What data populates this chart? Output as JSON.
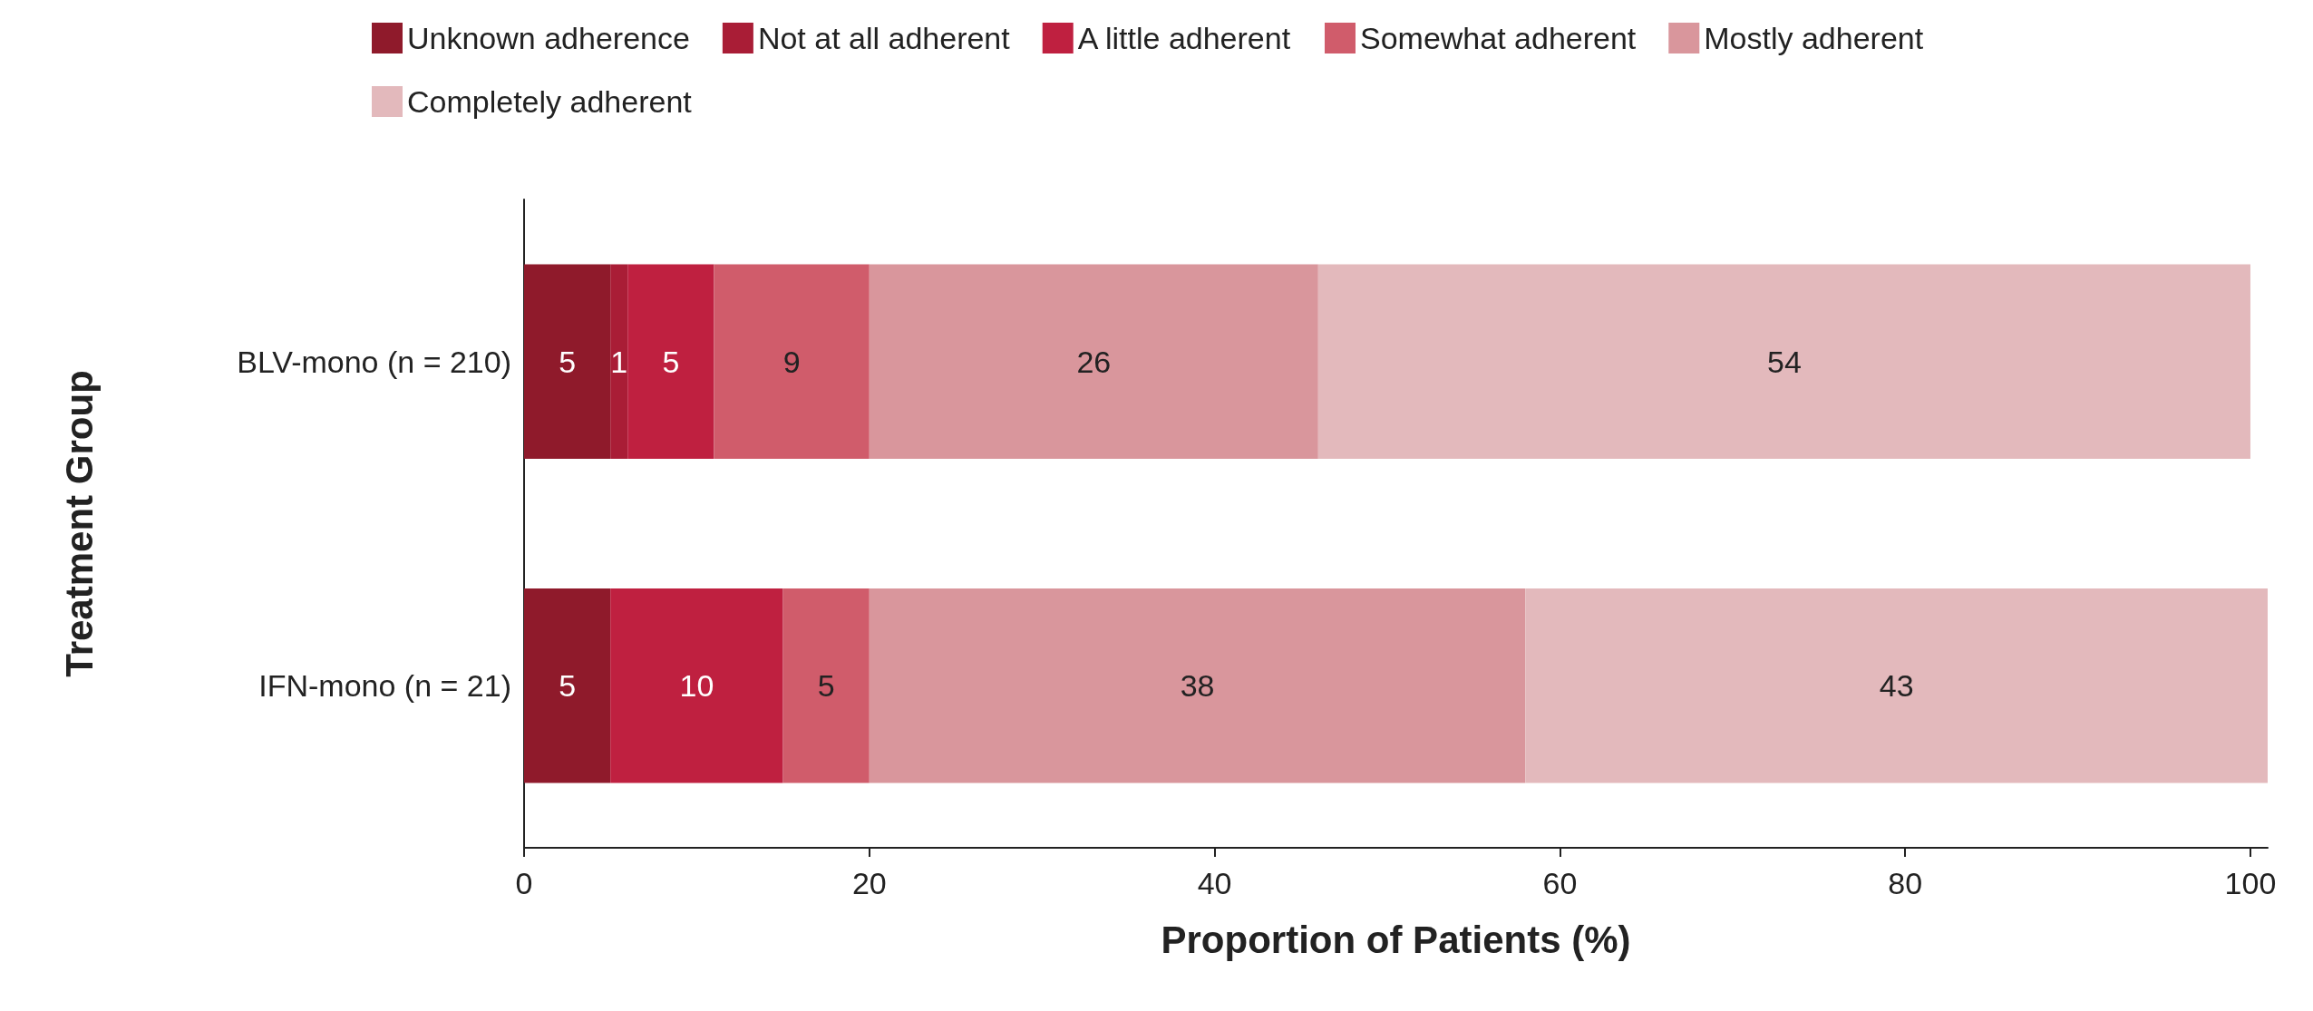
{
  "chart_data": {
    "type": "bar",
    "orientation": "horizontal",
    "stacked": true,
    "xlabel": "Proportion of Patients (%)",
    "ylabel": "Treatment Group",
    "categories": [
      "BLV-mono (n = 210)",
      "IFN-mono (n = 21)"
    ],
    "series": [
      {
        "name": "Unknown adherence",
        "color": "#8f1a2b",
        "values": [
          5,
          5
        ]
      },
      {
        "name": "Not at all adherent",
        "color": "#a91d36",
        "values": [
          1,
          null
        ]
      },
      {
        "name": "A little adherent",
        "color": "#bf2040",
        "values": [
          5,
          10
        ]
      },
      {
        "name": "Somewhat adherent",
        "color": "#d05c6b",
        "values": [
          9,
          5
        ]
      },
      {
        "name": "Mostly adherent",
        "color": "#d9969c",
        "values": [
          26,
          38
        ]
      },
      {
        "name": "Completely adherent",
        "color": "#e3b9bc",
        "values": [
          54,
          43
        ]
      }
    ],
    "xlim": [
      0,
      101
    ],
    "xticks": [
      0,
      20,
      40,
      60,
      80,
      100
    ],
    "data_labels": true,
    "legend": "top",
    "grid": false
  }
}
